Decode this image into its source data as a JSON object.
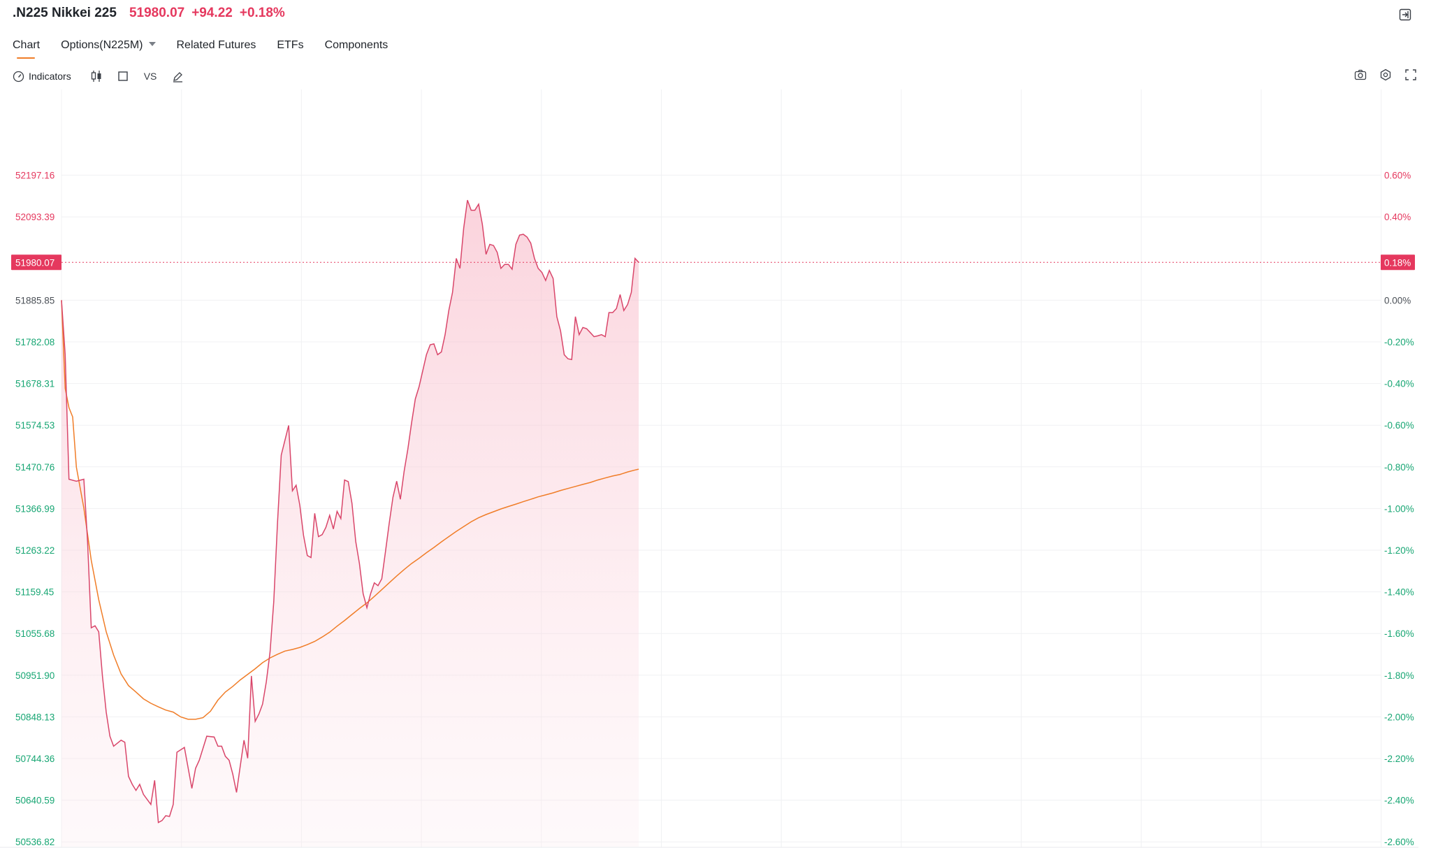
{
  "header": {
    "symbol": ".N225 Nikkei 225",
    "price": "51980.07",
    "change": "+94.22",
    "change_pct": "+0.18%"
  },
  "tabs": [
    {
      "label": "Chart",
      "active": true
    },
    {
      "label": "Options(N225M)"
    },
    {
      "label": "Related Futures"
    },
    {
      "label": "ETFs"
    },
    {
      "label": "Components"
    }
  ],
  "toolbar": {
    "indicators_label": "Indicators",
    "vs_label": "VS",
    "icons": [
      "gauge-icon",
      "candlestick-icon",
      "square-icon",
      "pencil-icon",
      "camera-icon",
      "gear-icon",
      "fullscreen-icon"
    ]
  },
  "colors": {
    "up": "#e5385e",
    "down": "#17a673",
    "neutral": "#4b5057",
    "avg_line": "#f07d28",
    "price_line": "#d9466a",
    "area_fill": "#fbd3dc"
  },
  "chart_data": {
    "type": "area",
    "y_left_ticks": [
      "52197.16",
      "52093.39",
      "51885.85",
      "51782.08",
      "51678.31",
      "51574.53",
      "51470.76",
      "51366.99",
      "51263.22",
      "51159.45",
      "51055.68",
      "50951.90",
      "50848.13",
      "50744.36",
      "50640.59",
      "50536.82"
    ],
    "y_right_ticks": [
      "0.60%",
      "0.40%",
      "0.00%",
      "-0.20%",
      "-0.40%",
      "-0.60%",
      "-0.80%",
      "-1.00%",
      "-1.20%",
      "-1.40%",
      "-1.60%",
      "-1.80%",
      "-2.00%",
      "-2.20%",
      "-2.40%",
      "-2.60%"
    ],
    "prev_close": 51885.85,
    "ylim": [
      50430,
      52250
    ],
    "x_slots": 330,
    "current_price_label": "51980.07",
    "current_pct_label": "0.18%",
    "current_price": 51980.07,
    "series": [
      {
        "kind": "price",
        "points": [
          [
            0,
            51885.85
          ],
          [
            1,
            51750
          ],
          [
            2,
            51440
          ],
          [
            4,
            51435
          ],
          [
            6,
            51440
          ],
          [
            7,
            51285
          ],
          [
            8,
            51070
          ],
          [
            9,
            51075
          ],
          [
            10,
            51060
          ],
          [
            11,
            50950
          ],
          [
            12,
            50860
          ],
          [
            13,
            50800
          ],
          [
            14,
            50775
          ],
          [
            16,
            50790
          ],
          [
            17,
            50785
          ],
          [
            18,
            50700
          ],
          [
            19,
            50680
          ],
          [
            20,
            50665
          ],
          [
            21,
            50680
          ],
          [
            22,
            50655
          ],
          [
            24,
            50630
          ],
          [
            25,
            50690
          ],
          [
            26,
            50585
          ],
          [
            27,
            50590
          ],
          [
            28,
            50602
          ],
          [
            29,
            50600
          ],
          [
            30,
            50630
          ],
          [
            31,
            50760
          ],
          [
            33,
            50772
          ],
          [
            35,
            50670
          ],
          [
            36,
            50720
          ],
          [
            37,
            50740
          ],
          [
            39,
            50800
          ],
          [
            41,
            50798
          ],
          [
            42,
            50775
          ],
          [
            43,
            50775
          ],
          [
            44,
            50750
          ],
          [
            45,
            50740
          ],
          [
            46,
            50705
          ],
          [
            47,
            50660
          ],
          [
            48,
            50725
          ],
          [
            49,
            50790
          ],
          [
            50,
            50745
          ],
          [
            51,
            50950
          ],
          [
            52,
            50837
          ],
          [
            53,
            50855
          ],
          [
            54,
            50880
          ],
          [
            55,
            50935
          ],
          [
            56,
            51010
          ],
          [
            57,
            51135
          ],
          [
            58,
            51330
          ],
          [
            59,
            51500
          ],
          [
            61,
            51574
          ],
          [
            62,
            51411
          ],
          [
            63,
            51425
          ],
          [
            64,
            51375
          ],
          [
            65,
            51300
          ],
          [
            66,
            51250
          ],
          [
            67,
            51245
          ],
          [
            68,
            51355
          ],
          [
            69,
            51297
          ],
          [
            70,
            51302
          ],
          [
            71,
            51320
          ],
          [
            72,
            51350
          ],
          [
            73,
            51316
          ],
          [
            74,
            51360
          ],
          [
            75,
            51342
          ],
          [
            76,
            51438
          ],
          [
            77,
            51434
          ],
          [
            78,
            51380
          ],
          [
            79,
            51285
          ],
          [
            80,
            51230
          ],
          [
            81,
            51155
          ],
          [
            82,
            51120
          ],
          [
            83,
            51155
          ],
          [
            84,
            51182
          ],
          [
            85,
            51175
          ],
          [
            86,
            51192
          ],
          [
            87,
            51260
          ],
          [
            88,
            51330
          ],
          [
            89,
            51395
          ],
          [
            90,
            51435
          ],
          [
            91,
            51390
          ],
          [
            92,
            51460
          ],
          [
            93,
            51515
          ],
          [
            94,
            51580
          ],
          [
            95,
            51640
          ],
          [
            96,
            51670
          ],
          [
            97,
            51710
          ],
          [
            98,
            51750
          ],
          [
            99,
            51775
          ],
          [
            100,
            51777
          ],
          [
            101,
            51750
          ],
          [
            102,
            51757
          ],
          [
            103,
            51800
          ],
          [
            104,
            51860
          ],
          [
            105,
            51905
          ],
          [
            106,
            51990
          ],
          [
            107,
            51965
          ],
          [
            108,
            52065
          ],
          [
            109,
            52135
          ],
          [
            110,
            52110
          ],
          [
            111,
            52110
          ],
          [
            112,
            52125
          ],
          [
            113,
            52075
          ],
          [
            114,
            52000
          ],
          [
            115,
            52025
          ],
          [
            116,
            52022
          ],
          [
            117,
            52005
          ],
          [
            118,
            51965
          ],
          [
            119,
            51975
          ],
          [
            120,
            51975
          ],
          [
            121,
            51963
          ],
          [
            122,
            52025
          ],
          [
            123,
            52048
          ],
          [
            124,
            52050
          ],
          [
            125,
            52043
          ],
          [
            126,
            52028
          ],
          [
            127,
            51990
          ],
          [
            128,
            51965
          ],
          [
            129,
            51955
          ],
          [
            130,
            51935
          ],
          [
            131,
            51960
          ],
          [
            132,
            51940
          ],
          [
            133,
            51845
          ],
          [
            134,
            51810
          ],
          [
            135,
            51750
          ],
          [
            136,
            51740
          ],
          [
            137,
            51738
          ],
          [
            138,
            51845
          ],
          [
            139,
            51800
          ],
          [
            140,
            51818
          ],
          [
            141,
            51815
          ],
          [
            142,
            51805
          ],
          [
            143,
            51795
          ],
          [
            144,
            51797
          ],
          [
            145,
            51800
          ],
          [
            146,
            51795
          ],
          [
            147,
            51855
          ],
          [
            148,
            51855
          ],
          [
            149,
            51865
          ],
          [
            150,
            51900
          ],
          [
            151,
            51860
          ],
          [
            152,
            51875
          ],
          [
            153,
            51905
          ],
          [
            154,
            51990
          ],
          [
            155,
            51980
          ]
        ]
      },
      {
        "kind": "average",
        "points": [
          [
            0,
            51885.85
          ],
          [
            1,
            51666
          ],
          [
            2,
            51618
          ],
          [
            3,
            51595
          ],
          [
            4,
            51470
          ],
          [
            6,
            51368
          ],
          [
            8,
            51238
          ],
          [
            10,
            51140
          ],
          [
            12,
            51060
          ],
          [
            14,
            51002
          ],
          [
            16,
            50955
          ],
          [
            18,
            50926
          ],
          [
            20,
            50910
          ],
          [
            22,
            50893
          ],
          [
            24,
            50882
          ],
          [
            26,
            50873
          ],
          [
            28,
            50865
          ],
          [
            30,
            50860
          ],
          [
            32,
            50848
          ],
          [
            34,
            50842
          ],
          [
            36,
            50842
          ],
          [
            38,
            50846
          ],
          [
            40,
            50862
          ],
          [
            42,
            50890
          ],
          [
            44,
            50910
          ],
          [
            46,
            50924
          ],
          [
            48,
            50940
          ],
          [
            50,
            50954
          ],
          [
            52,
            50968
          ],
          [
            54,
            50983
          ],
          [
            56,
            50995
          ],
          [
            58,
            51004
          ],
          [
            60,
            51012
          ],
          [
            62,
            51016
          ],
          [
            64,
            51021
          ],
          [
            66,
            51028
          ],
          [
            68,
            51036
          ],
          [
            70,
            51047
          ],
          [
            72,
            51059
          ],
          [
            74,
            51074
          ],
          [
            76,
            51088
          ],
          [
            78,
            51103
          ],
          [
            80,
            51118
          ],
          [
            82,
            51132
          ],
          [
            84,
            51148
          ],
          [
            86,
            51165
          ],
          [
            88,
            51182
          ],
          [
            90,
            51199
          ],
          [
            92,
            51215
          ],
          [
            94,
            51230
          ],
          [
            96,
            51243
          ],
          [
            98,
            51257
          ],
          [
            100,
            51270
          ],
          [
            102,
            51284
          ],
          [
            104,
            51297
          ],
          [
            106,
            51310
          ],
          [
            108,
            51322
          ],
          [
            110,
            51334
          ],
          [
            112,
            51344
          ],
          [
            114,
            51352
          ],
          [
            116,
            51359
          ],
          [
            118,
            51366
          ],
          [
            120,
            51372
          ],
          [
            122,
            51378
          ],
          [
            124,
            51384
          ],
          [
            126,
            51390
          ],
          [
            128,
            51396
          ],
          [
            130,
            51401
          ],
          [
            132,
            51406
          ],
          [
            134,
            51412
          ],
          [
            136,
            51417
          ],
          [
            138,
            51422
          ],
          [
            140,
            51427
          ],
          [
            142,
            51432
          ],
          [
            144,
            51438
          ],
          [
            146,
            51443
          ],
          [
            148,
            51448
          ],
          [
            150,
            51452
          ],
          [
            152,
            51458
          ],
          [
            154,
            51463
          ],
          [
            155,
            51465
          ]
        ]
      }
    ]
  }
}
